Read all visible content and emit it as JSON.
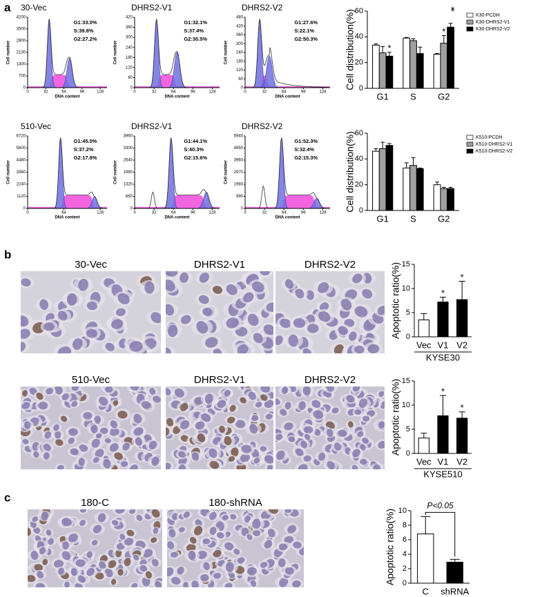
{
  "panel_labels": [
    "a",
    "b",
    "c"
  ],
  "histograms": [
    {
      "title": "30-Vec",
      "stats": [
        "G1:33.0%",
        "S:39.8%",
        "G2:27.2%"
      ],
      "xlabel": "DNA content",
      "ylabel": "Cell number",
      "xlim": [
        0,
        140
      ],
      "xticks": [
        0,
        32,
        64,
        96,
        128
      ],
      "ylim": [
        0,
        4200
      ],
      "yticks": [
        0,
        700,
        1400,
        2100,
        2800,
        3500,
        4200
      ]
    },
    {
      "title": "DHRS2-V1",
      "stats": [
        "G1:32.1%",
        "S:37.4%",
        "G2:30.5%"
      ],
      "xlabel": "DNA content",
      "ylabel": "Cell number",
      "xlim": [
        0,
        140
      ],
      "xticks": [
        0,
        32,
        64,
        96,
        128
      ],
      "ylim": [
        0,
        420
      ],
      "yticks": [
        0,
        60,
        120,
        180,
        240,
        300,
        360,
        420
      ]
    },
    {
      "title": "DHRS2-V2",
      "stats": [
        "G1:27.6%",
        "S:22.1%",
        "G2:50.3%"
      ],
      "xlabel": "DNA content",
      "ylabel": "Cell number",
      "xlim": [
        0,
        140
      ],
      "xticks": [
        0,
        32,
        64,
        96,
        128
      ],
      "ylim": [
        0,
        480
      ],
      "yticks": [
        0,
        60,
        120,
        180,
        240,
        300,
        360,
        420,
        480
      ]
    },
    {
      "title": "510-Vec",
      "stats": [
        "G1:45.0%",
        "S:37.2%",
        "G2:17.8%"
      ],
      "xlabel": "DNA content",
      "ylabel": "Cell number",
      "xlim": [
        0,
        140
      ],
      "xticks": [
        0,
        64,
        128
      ],
      "ylim": [
        0,
        6720
      ],
      "yticks": [
        0,
        1120,
        2240,
        3360,
        4480,
        5600,
        6720
      ]
    },
    {
      "title": "DHRS2-V1",
      "stats": [
        "G1:44.1%",
        "S:40.3%",
        "G2:15.6%"
      ],
      "xlabel": "DNA content",
      "ylabel": "Cell number",
      "xlim": [
        0,
        140
      ],
      "xticks": [
        0,
        32,
        64,
        96,
        128
      ],
      "ylim": [
        0,
        3960
      ],
      "yticks": [
        0,
        660,
        1320,
        1980,
        2640,
        3300,
        3960
      ]
    },
    {
      "title": "DHRS2-V2",
      "stats": [
        "G1:52.3%",
        "S:32.4%",
        "G2:15.3%"
      ],
      "xlabel": "DNA content",
      "ylabel": "Cell number",
      "xlim": [
        0,
        140
      ],
      "xticks": [
        0,
        32,
        64,
        96,
        128
      ],
      "ylim": [
        0,
        5940
      ],
      "yticks": [
        0,
        990,
        1980,
        2970,
        3960,
        4950,
        5940
      ]
    }
  ],
  "images": [
    {
      "label": "30-Vec"
    },
    {
      "label": "DHRS2-V1"
    },
    {
      "label": "DHRS2-V2"
    },
    {
      "label": "510-Vec"
    },
    {
      "label": "DHRS2-V1"
    },
    {
      "label": "DHRS2-V2"
    },
    {
      "label": "180-C"
    },
    {
      "label": "180-shRNA"
    }
  ],
  "chart_data": [
    {
      "type": "bar",
      "ylabel": "Cell distribution(%)",
      "categories": [
        "G1",
        "S",
        "G2"
      ],
      "ylim": [
        0,
        60
      ],
      "yticks": [
        0,
        20,
        40,
        60
      ],
      "legend": "right",
      "series": [
        {
          "name": "K30-PCDH",
          "color": "#ffffff",
          "values": [
            33.5,
            39,
            26.5
          ],
          "errors": [
            1,
            0.5,
            0.5
          ],
          "significance": [
            null,
            null,
            null
          ]
        },
        {
          "name": "K30-DHRS2-V1",
          "color": "#a0a0a0",
          "values": [
            27.5,
            37,
            35
          ],
          "errors": [
            5,
            1.5,
            6
          ],
          "significance": [
            null,
            null,
            "*"
          ]
        },
        {
          "name": "K30-DHRS2-V2",
          "color": "#000000",
          "values": [
            25,
            27,
            47.5
          ],
          "errors": [
            3,
            5,
            3
          ],
          "significance": [
            "*",
            null,
            "**"
          ]
        }
      ]
    },
    {
      "type": "bar",
      "ylabel": "Cell distribution(%)",
      "categories": [
        "G1",
        "S",
        "G2"
      ],
      "ylim": [
        0,
        60
      ],
      "yticks": [
        0,
        20,
        40,
        60
      ],
      "legend": "right",
      "series": [
        {
          "name": "K510-PCDH",
          "color": "#ffffff",
          "values": [
            46,
            33,
            20
          ],
          "errors": [
            2,
            4,
            2
          ]
        },
        {
          "name": "K510-DHRS2-V1",
          "color": "#a0a0a0",
          "values": [
            48,
            35,
            17
          ],
          "errors": [
            5,
            6,
            1
          ]
        },
        {
          "name": "K510-DHRS2-V2",
          "color": "#000000",
          "values": [
            50.5,
            32.5,
            17
          ],
          "errors": [
            1.5,
            0.5,
            1
          ]
        }
      ]
    },
    {
      "type": "bar",
      "ylabel": "Apoptotic ratio(%)",
      "xlabel": "KYSE30",
      "categories": [
        "Vec",
        "V1",
        "V2"
      ],
      "ylim": [
        0,
        15
      ],
      "yticks": [
        0,
        5,
        10,
        15
      ],
      "series": [
        {
          "colors": [
            "#ffffff",
            "#000000",
            "#000000"
          ],
          "values": [
            3.5,
            7.2,
            7.7
          ],
          "errors": [
            1.3,
            1.0,
            3.8
          ],
          "significance": [
            null,
            "*",
            "*"
          ]
        }
      ]
    },
    {
      "type": "bar",
      "ylabel": "Apoptotic ratio(%)",
      "xlabel": "KYSE510",
      "categories": [
        "Vec",
        "V1",
        "V2"
      ],
      "ylim": [
        0,
        15
      ],
      "yticks": [
        0,
        5,
        10,
        15
      ],
      "series": [
        {
          "colors": [
            "#ffffff",
            "#000000",
            "#000000"
          ],
          "values": [
            3.2,
            7.8,
            7.3
          ],
          "errors": [
            1.0,
            4.2,
            1.3
          ],
          "significance": [
            null,
            "*",
            "*"
          ]
        }
      ]
    },
    {
      "type": "bar",
      "ylabel": "Apoptotic ratio(%)",
      "categories": [
        "C",
        "shRNA"
      ],
      "ylim": [
        0,
        10
      ],
      "yticks": [
        0,
        2,
        4,
        6,
        8,
        10
      ],
      "annotation": "P<0.05",
      "series": [
        {
          "colors": [
            "#ffffff",
            "#000000"
          ],
          "values": [
            6.8,
            2.9
          ],
          "errors": [
            2.4,
            0.4
          ]
        }
      ]
    }
  ]
}
